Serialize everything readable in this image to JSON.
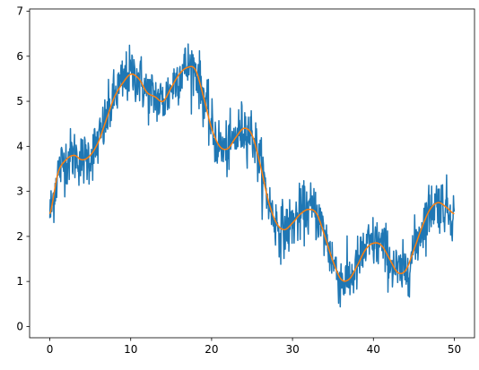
{
  "chart_data": {
    "type": "line",
    "title": "",
    "xlabel": "",
    "ylabel": "",
    "xlim": [
      -2.5,
      52.5
    ],
    "ylim": [
      -0.25,
      7.05
    ],
    "grid": false,
    "legend": "none",
    "x_ticks": [
      0,
      10,
      20,
      30,
      40,
      50
    ],
    "y_ticks": [
      0,
      1,
      2,
      3,
      4,
      5,
      6,
      7
    ],
    "x_tick_labels": [
      "0",
      "10",
      "20",
      "30",
      "40",
      "50"
    ],
    "y_tick_labels": [
      "0",
      "1",
      "2",
      "3",
      "4",
      "5",
      "6",
      "7"
    ],
    "series": [
      {
        "role": "noisy-signal",
        "color": "#1f77b4",
        "noise_amplitude": 0.55,
        "x": [
          0,
          1,
          2,
          3,
          4,
          5,
          6,
          7,
          8,
          9,
          10,
          11,
          12,
          13,
          14,
          15,
          16,
          17,
          18,
          19,
          20,
          21,
          22,
          23,
          24,
          25,
          26,
          27,
          28,
          29,
          30,
          31,
          32,
          33,
          34,
          35,
          36,
          37,
          38,
          39,
          40,
          41,
          42,
          43,
          44,
          45,
          46,
          47,
          48,
          49,
          50
        ],
        "y": [
          2.5,
          3.4,
          3.7,
          3.8,
          3.7,
          3.8,
          4.1,
          4.6,
          5.1,
          5.4,
          5.6,
          5.5,
          5.2,
          5.1,
          5.0,
          5.3,
          5.6,
          5.75,
          5.7,
          5.1,
          4.4,
          4.0,
          3.95,
          4.2,
          4.4,
          4.25,
          3.6,
          2.8,
          2.3,
          2.15,
          2.3,
          2.5,
          2.6,
          2.5,
          2.0,
          1.45,
          1.05,
          1.05,
          1.35,
          1.7,
          1.85,
          1.8,
          1.5,
          1.2,
          1.25,
          1.7,
          2.2,
          2.6,
          2.75,
          2.65,
          2.5
        ]
      },
      {
        "role": "smooth-signal",
        "color": "#ff7f0e",
        "x": [
          0,
          1,
          2,
          3,
          4,
          5,
          6,
          7,
          8,
          9,
          10,
          11,
          12,
          13,
          14,
          15,
          16,
          17,
          18,
          19,
          20,
          21,
          22,
          23,
          24,
          25,
          26,
          27,
          28,
          29,
          30,
          31,
          32,
          33,
          34,
          35,
          36,
          37,
          38,
          39,
          40,
          41,
          42,
          43,
          44,
          45,
          46,
          47,
          48,
          49,
          50
        ],
        "y": [
          2.5,
          3.4,
          3.7,
          3.8,
          3.7,
          3.8,
          4.1,
          4.6,
          5.1,
          5.4,
          5.6,
          5.5,
          5.2,
          5.1,
          5.0,
          5.3,
          5.6,
          5.75,
          5.7,
          5.1,
          4.4,
          4.0,
          3.95,
          4.2,
          4.4,
          4.25,
          3.6,
          2.8,
          2.3,
          2.15,
          2.3,
          2.5,
          2.6,
          2.5,
          2.0,
          1.45,
          1.05,
          1.05,
          1.35,
          1.7,
          1.85,
          1.8,
          1.5,
          1.2,
          1.25,
          1.7,
          2.2,
          2.6,
          2.75,
          2.65,
          2.5
        ]
      }
    ]
  }
}
